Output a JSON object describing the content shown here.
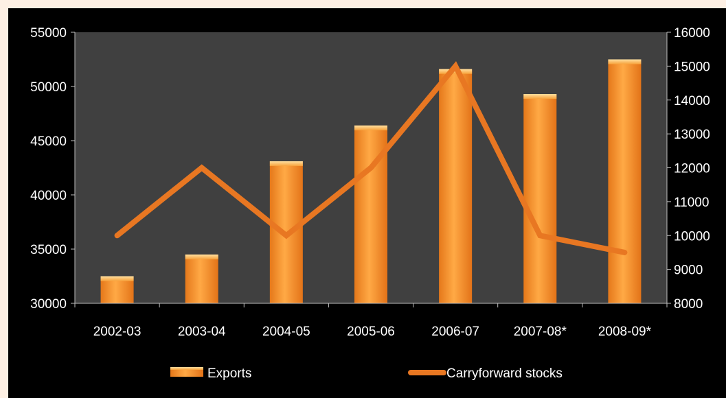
{
  "chart_data": {
    "type": "bar",
    "categories": [
      "2002-03",
      "2003-04",
      "2004-05",
      "2005-06",
      "2006-07",
      "2007-08*",
      "2008-09*"
    ],
    "series": [
      {
        "name": "Exports",
        "type": "bar",
        "axis": "left",
        "values": [
          32500,
          34500,
          43100,
          46400,
          51600,
          49300,
          52500
        ]
      },
      {
        "name": "Carryforward stocks",
        "type": "line",
        "axis": "right",
        "values": [
          10000,
          12000,
          10000,
          12000,
          15000,
          10000,
          9500
        ]
      }
    ],
    "y_left": {
      "min": 30000,
      "max": 55000,
      "ticks": [
        30000,
        35000,
        40000,
        45000,
        50000,
        55000
      ]
    },
    "y_right": {
      "min": 8000,
      "max": 16000,
      "ticks": [
        8000,
        9000,
        10000,
        11000,
        12000,
        13000,
        14000,
        15000,
        16000
      ]
    },
    "grid": false,
    "legend_position": "bottom",
    "colors": {
      "bar": "#f7941d",
      "bar_light": "#ffc36b",
      "bar_dark": "#e5781a",
      "line": "#e87722",
      "plot_bg": "#404040",
      "background": "#000000",
      "text": "#ffffff"
    }
  }
}
